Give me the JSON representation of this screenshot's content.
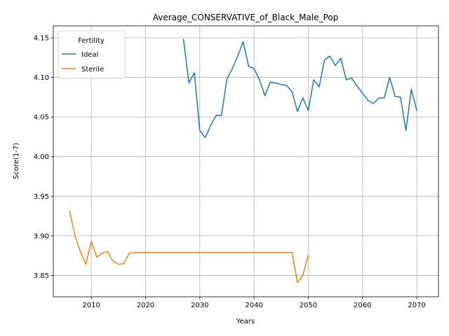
{
  "chart_data": {
    "type": "line",
    "title": "Average_CONSERVATIVE_of_Black_Male_Pop",
    "xlabel": "Years",
    "ylabel": "Score(1-7)",
    "xlim": [
      2003,
      2074
    ],
    "ylim": [
      3.823,
      4.165
    ],
    "xticks": [
      2010,
      2020,
      2030,
      2040,
      2050,
      2060,
      2070
    ],
    "yticks": [
      3.85,
      3.9,
      3.95,
      4.0,
      4.05,
      4.1,
      4.15
    ],
    "ytick_labels": [
      "3.85",
      "3.90",
      "3.95",
      "4.00",
      "4.05",
      "4.10",
      "4.15"
    ],
    "grid": true,
    "legend": {
      "title": "Fertility",
      "placement": "top-left"
    },
    "series": [
      {
        "name": "Ideal",
        "color": "#1f77b4",
        "x": [
          2027,
          2028,
          2029,
          2030,
          2031,
          2032,
          2033,
          2034,
          2035,
          2036,
          2037,
          2038,
          2039,
          2040,
          2041,
          2042,
          2043,
          2044,
          2045,
          2046,
          2047,
          2048,
          2049,
          2050,
          2051,
          2052,
          2053,
          2054,
          2055,
          2056,
          2057,
          2058,
          2059,
          2060,
          2061,
          2062,
          2063,
          2064,
          2065,
          2066,
          2067,
          2068,
          2069,
          2070
        ],
        "y": [
          4.148,
          4.093,
          4.106,
          4.033,
          4.024,
          4.039,
          4.052,
          4.052,
          4.098,
          4.111,
          4.127,
          4.145,
          4.114,
          4.111,
          4.097,
          4.077,
          4.094,
          4.093,
          4.091,
          4.09,
          4.082,
          4.057,
          4.074,
          4.058,
          4.097,
          4.088,
          4.122,
          4.127,
          4.115,
          4.124,
          4.097,
          4.099,
          4.089,
          4.08,
          4.071,
          4.067,
          4.074,
          4.074,
          4.1,
          4.076,
          4.075,
          4.033,
          4.085,
          4.058
        ]
      },
      {
        "name": "Sterile",
        "color": "#ff7f0e",
        "x": [
          2006,
          2007,
          2008,
          2009,
          2010,
          2011,
          2012,
          2013,
          2014,
          2015,
          2016,
          2017,
          2018,
          2019,
          2020,
          2021,
          2022,
          2023,
          2024,
          2025,
          2026,
          2027,
          2028,
          2029,
          2030,
          2031,
          2032,
          2033,
          2034,
          2035,
          2036,
          2037,
          2038,
          2039,
          2040,
          2041,
          2042,
          2043,
          2044,
          2045,
          2046,
          2047,
          2048,
          2049,
          2050
        ],
        "y": [
          3.931,
          3.9,
          3.88,
          3.864,
          3.893,
          3.873,
          3.878,
          3.88,
          3.868,
          3.864,
          3.865,
          3.878,
          3.879,
          3.879,
          3.879,
          3.879,
          3.879,
          3.879,
          3.879,
          3.879,
          3.879,
          3.879,
          3.879,
          3.879,
          3.879,
          3.879,
          3.879,
          3.879,
          3.879,
          3.879,
          3.879,
          3.879,
          3.879,
          3.879,
          3.879,
          3.879,
          3.879,
          3.879,
          3.879,
          3.879,
          3.879,
          3.879,
          3.841,
          3.85,
          3.876
        ]
      }
    ]
  }
}
